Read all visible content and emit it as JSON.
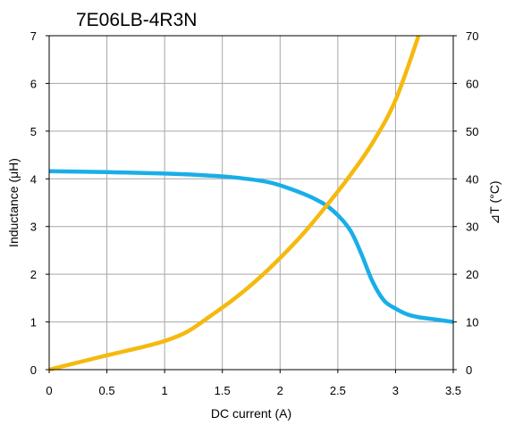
{
  "chart_data": {
    "type": "line",
    "title": "7E06LB-4R3N",
    "xlabel": "DC current (A)",
    "ylabel_left": "Inductance (μH)",
    "ylabel_right": "⊿T (°C)",
    "xlim": [
      0,
      3.5
    ],
    "ylim_left": [
      0,
      7
    ],
    "ylim_right": [
      0,
      70
    ],
    "grid": true,
    "x_ticks": [
      {
        "value": 0,
        "label": "0"
      },
      {
        "value": 0.5,
        "label": "0.5"
      },
      {
        "value": 1,
        "label": "1"
      },
      {
        "value": 1.5,
        "label": "1.5"
      },
      {
        "value": 2,
        "label": "2"
      },
      {
        "value": 2.5,
        "label": "2.5"
      },
      {
        "value": 3,
        "label": "3"
      },
      {
        "value": 3.5,
        "label": "3.5"
      }
    ],
    "y_ticks_left": [
      {
        "value": 0,
        "label": "0"
      },
      {
        "value": 1,
        "label": "1"
      },
      {
        "value": 2,
        "label": "2"
      },
      {
        "value": 3,
        "label": "3"
      },
      {
        "value": 4,
        "label": "4"
      },
      {
        "value": 5,
        "label": "5"
      },
      {
        "value": 6,
        "label": "6"
      },
      {
        "value": 7,
        "label": "7"
      }
    ],
    "y_ticks_right": [
      {
        "value": 0,
        "label": "0"
      },
      {
        "value": 10,
        "label": "10"
      },
      {
        "value": 20,
        "label": "20"
      },
      {
        "value": 30,
        "label": "30"
      },
      {
        "value": 40,
        "label": "40"
      },
      {
        "value": 50,
        "label": "50"
      },
      {
        "value": 60,
        "label": "60"
      },
      {
        "value": 70,
        "label": "70"
      }
    ],
    "series": [
      {
        "axis": "left",
        "color": "#1aaee8",
        "x": [
          0,
          0.5,
          1.0,
          1.3,
          1.6,
          1.9,
          2.1,
          2.3,
          2.45,
          2.6,
          2.7,
          2.8,
          2.9,
          3.0,
          3.1,
          3.2,
          3.35,
          3.5
        ],
        "values": [
          4.16,
          4.14,
          4.11,
          4.08,
          4.03,
          3.93,
          3.78,
          3.58,
          3.35,
          2.95,
          2.45,
          1.85,
          1.45,
          1.28,
          1.16,
          1.1,
          1.05,
          1.0
        ]
      },
      {
        "axis": "right",
        "color": "#f5b90f",
        "x": [
          0,
          0.25,
          0.5,
          0.75,
          1.0,
          1.2,
          1.4,
          1.6,
          1.8,
          2.0,
          2.2,
          2.4,
          2.6,
          2.8,
          3.0,
          3.2
        ],
        "values": [
          0,
          1.5,
          3.0,
          4.4,
          6.0,
          8.0,
          11.3,
          14.8,
          18.8,
          23.4,
          28.5,
          34.3,
          40.5,
          47.5,
          56.5,
          70
        ]
      }
    ]
  }
}
